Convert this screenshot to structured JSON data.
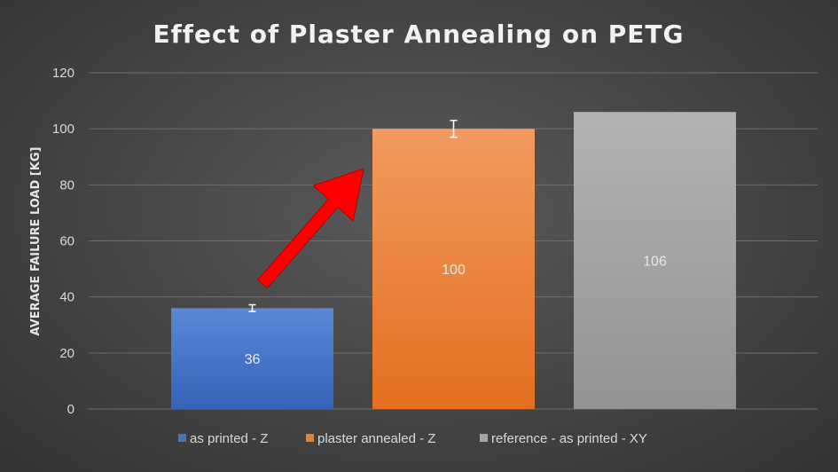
{
  "chart_data": {
    "type": "bar",
    "title": "Effect of Plaster Annealing on PETG",
    "ylabel": "AVERAGE FAILURE LOAD [KG]",
    "xlabel": "",
    "ylim": [
      0,
      120
    ],
    "yticks": [
      0,
      20,
      40,
      60,
      80,
      100,
      120
    ],
    "grid": true,
    "legend_position": "bottom",
    "series": [
      {
        "name": "as printed - Z",
        "value": 36,
        "label": "36",
        "error": 1.2,
        "color": "#4472c4"
      },
      {
        "name": "plaster annealed - Z",
        "value": 100,
        "label": "100",
        "error": 3,
        "color": "#ed7d31"
      },
      {
        "name": "reference - as printed - XY",
        "value": 106,
        "label": "106",
        "error": null,
        "color": "#a5a5a5"
      }
    ],
    "annotation": {
      "type": "arrow",
      "color": "#ff0000",
      "from_series": 0,
      "to_series": 1
    }
  }
}
